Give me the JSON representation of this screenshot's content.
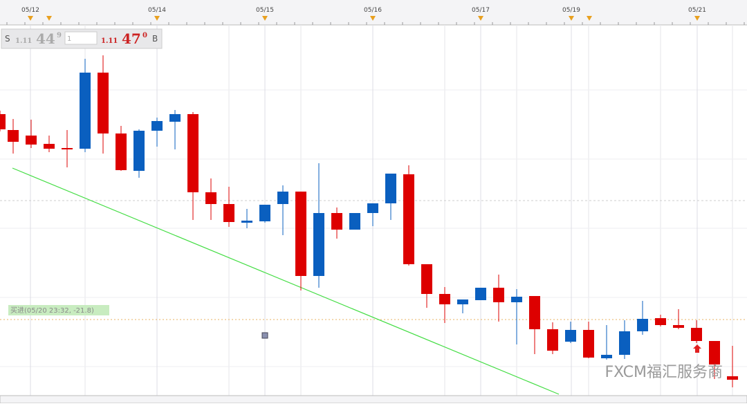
{
  "toolbar": {
    "dates": [
      "05/12",
      "05/14",
      "05/15",
      "05/16",
      "05/17",
      "05/19",
      "05/21"
    ]
  },
  "quote": {
    "sell_label": "S",
    "sell_big": "1.11",
    "sell_main": "44",
    "sell_sup": "9",
    "amount": "1",
    "buy_big": "1.11",
    "buy_main": "47",
    "buy_sup": "0",
    "buy_label": "B"
  },
  "trade_label": "买进(05/20 23:32, -21.8)",
  "watermark": "FXCM福汇服务商"
}
